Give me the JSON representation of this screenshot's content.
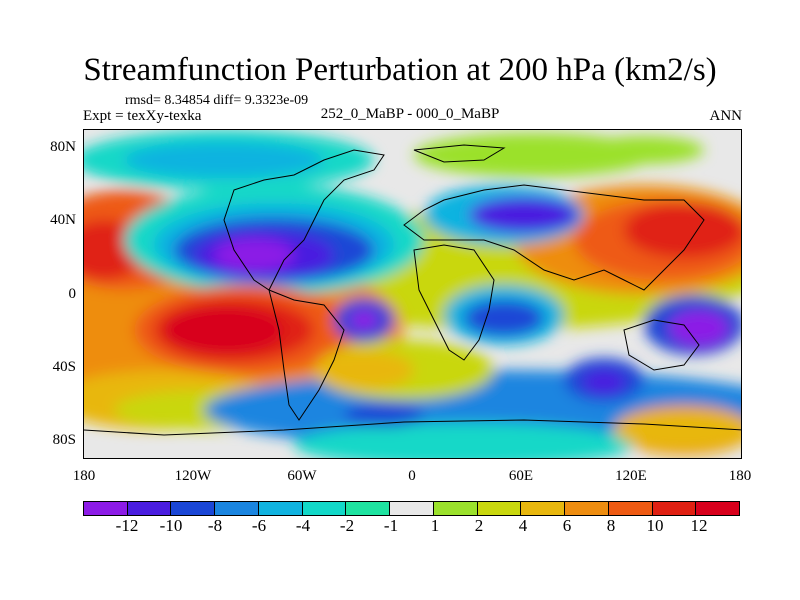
{
  "figure": {
    "title": "Streamfunction Perturbation at 200 hPa (km2/s)",
    "stats": "rmsd= 8.34854  diff= 9.3323e-09",
    "experiment": "Expt = texXy-texka",
    "comparison": "252_0_MaBP - 000_0_MaBP",
    "season": "ANN"
  },
  "map": {
    "lon_labels": [
      "180",
      "120W",
      "60W",
      "0",
      "60E",
      "120E",
      "180"
    ],
    "lat_labels": [
      "80N",
      "40N",
      "0",
      "40S",
      "80S"
    ]
  },
  "colorbar": {
    "levels": [
      "-12",
      "-10",
      "-8",
      "-6",
      "-4",
      "-2",
      "-1",
      "1",
      "2",
      "4",
      "6",
      "8",
      "10",
      "12"
    ],
    "colors": [
      "#8c1be6",
      "#4a1de0",
      "#1a46d6",
      "#1a85e0",
      "#10b3e0",
      "#12d8c8",
      "#1ee3a0",
      "#e8e8e8",
      "#9be12c",
      "#c9d70e",
      "#e8b70e",
      "#ee8d10",
      "#ee5a12",
      "#e02012",
      "#d8001c"
    ]
  }
}
